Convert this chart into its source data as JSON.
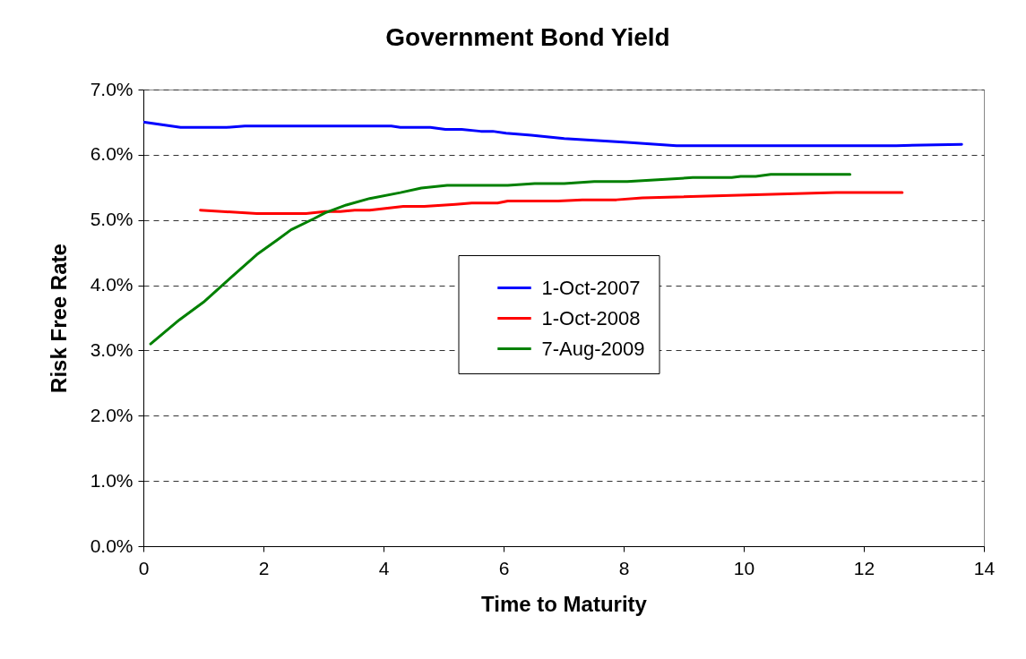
{
  "chart_data": {
    "type": "line",
    "title": "Government Bond Yield",
    "xlabel": "Time to Maturity",
    "ylabel": "Risk Free Rate",
    "xlim": [
      0,
      14
    ],
    "xticks": [
      0,
      2,
      4,
      6,
      8,
      10,
      12,
      14
    ],
    "ylim": [
      0,
      7
    ],
    "yticks": [
      {
        "value": 0,
        "label": "0.0%"
      },
      {
        "value": 1,
        "label": "1.0%"
      },
      {
        "value": 2,
        "label": "2.0%"
      },
      {
        "value": 3,
        "label": "3.0%"
      },
      {
        "value": 4,
        "label": "4.0%"
      },
      {
        "value": 5,
        "label": "5.0%"
      },
      {
        "value": 6,
        "label": "6.0%"
      },
      {
        "value": 7,
        "label": "7.0%"
      }
    ],
    "grid": "y",
    "legend": "center",
    "marker": "none",
    "line_style": "solid",
    "series": [
      {
        "name": "1-Oct-2007",
        "color": "#0000ff",
        "x": [
          0.02,
          0.62,
          1.39,
          1.69,
          4.13,
          4.28,
          4.78,
          5.03,
          5.3,
          5.62,
          5.82,
          6.04,
          6.46,
          7.01,
          8.06,
          8.88,
          12.54,
          13.63
        ],
        "values": [
          6.5,
          6.42,
          6.42,
          6.44,
          6.44,
          6.42,
          6.42,
          6.39,
          6.39,
          6.36,
          6.36,
          6.33,
          6.3,
          6.25,
          6.19,
          6.14,
          6.14,
          6.16
        ]
      },
      {
        "name": "1-Oct-2008",
        "color": "#ff0000",
        "x": [
          0.95,
          1.89,
          2.71,
          3.03,
          3.28,
          3.52,
          3.77,
          4.33,
          4.68,
          5.2,
          5.47,
          5.9,
          6.07,
          6.91,
          7.31,
          7.88,
          8.31,
          11.54,
          12.64
        ],
        "values": [
          5.15,
          5.1,
          5.1,
          5.13,
          5.13,
          5.15,
          5.15,
          5.21,
          5.21,
          5.24,
          5.26,
          5.26,
          5.29,
          5.29,
          5.31,
          5.31,
          5.34,
          5.42,
          5.42
        ]
      },
      {
        "name": "7-Aug-2009",
        "color": "#008000",
        "x": [
          0.12,
          0.6,
          1.0,
          1.34,
          1.89,
          2.24,
          2.46,
          2.84,
          3.03,
          3.38,
          3.77,
          4.28,
          4.63,
          5.06,
          6.07,
          6.52,
          7.01,
          7.51,
          8.06,
          9.15,
          9.8,
          9.95,
          10.2,
          10.45,
          11.77
        ],
        "values": [
          3.1,
          3.47,
          3.74,
          4.02,
          4.47,
          4.7,
          4.85,
          5.02,
          5.11,
          5.23,
          5.33,
          5.42,
          5.49,
          5.53,
          5.53,
          5.56,
          5.56,
          5.59,
          5.59,
          5.65,
          5.65,
          5.67,
          5.67,
          5.7,
          5.7
        ]
      }
    ]
  }
}
